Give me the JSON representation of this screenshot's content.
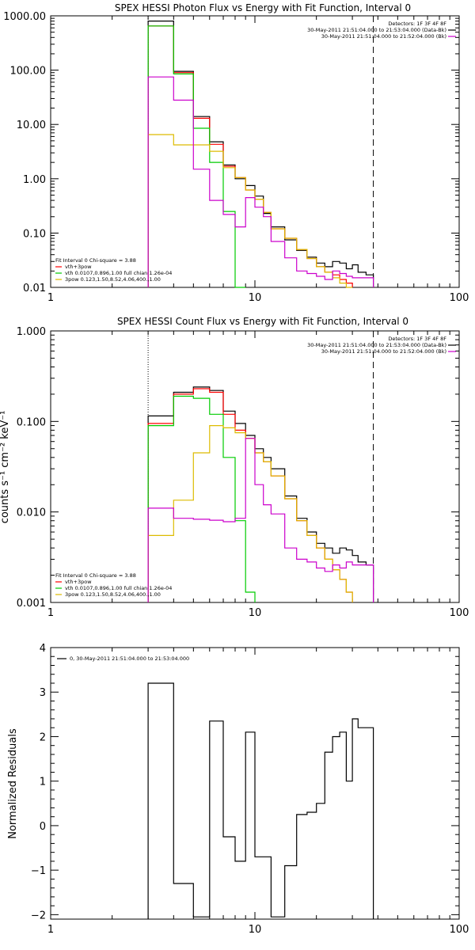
{
  "colors": {
    "axis": "#000000",
    "total": "#000000",
    "fit": "#ff0000",
    "thermal": "#00cc00",
    "power_law": "#ddbb00",
    "background": "#cc00cc"
  },
  "chart_data": [
    {
      "type": "line",
      "scale": {
        "x": "log",
        "y": "log"
      },
      "title": "SPEX HESSI Photon Flux vs Energy with Fit Function, Interval 0",
      "xlim": [
        1,
        100
      ],
      "ylim": [
        0.01,
        1000
      ],
      "xtick_labels": [
        "1",
        "10",
        "100"
      ],
      "ytick_values": [
        0.01,
        0.1,
        1,
        10,
        100,
        1000
      ],
      "ytick_labels": [
        "0.01",
        "0.10",
        "1.00",
        "10.00",
        "100.00",
        "1000.00"
      ],
      "fit_range": [
        3,
        38
      ],
      "legend_top_right": [
        "Detectors: 1F 3F 4F 8F",
        "30-May-2011 21:51:04.000 to 21:53:04.000 (Data-Bk)",
        "30-May-2011 21:51:04.000 to 21:52:04.000 (Bk)"
      ],
      "legend_bottom_left": [
        "Fit Interval 0   Chi-square = 3.88",
        "vth+3pow",
        "vth 0.0107,0.896,1.00  full chian 1.26e-04",
        "3pow 0.123,1.50,8.52,4.06,400.,1.00"
      ],
      "x_edges": [
        3.0,
        4.0,
        5.0,
        6.0,
        7.0,
        8.0,
        9.0,
        10.0,
        11.0,
        12.0,
        14.0,
        16.0,
        18.0,
        20.0,
        22.0,
        24.0,
        26.0,
        28.0,
        30.0,
        32.0,
        35.0,
        38.0
      ],
      "series": [
        {
          "name": "Data-Bk",
          "color": "#000000",
          "values": [
            800,
            95,
            14,
            4.8,
            1.8,
            1.0,
            0.75,
            0.48,
            0.23,
            0.13,
            0.075,
            0.048,
            0.036,
            0.028,
            0.024,
            0.03,
            0.028,
            0.022,
            0.026,
            0.019,
            0.017
          ]
        },
        {
          "name": "vth+3pow",
          "color": "#ff0000",
          "values": [
            650,
            90,
            13,
            4.3,
            1.7,
            1.05,
            0.62,
            0.42,
            0.24,
            0.12,
            0.08,
            0.05,
            0.034,
            0.024,
            0.019,
            0.017,
            0.014,
            0.012
          ]
        },
        {
          "name": "vth",
          "color": "#00cc00",
          "values": [
            650,
            85,
            8.5,
            2.0,
            0.25,
            0.01
          ]
        },
        {
          "name": "3pow",
          "color": "#ddbb00",
          "values": [
            6.5,
            4.2,
            4.2,
            3.2,
            1.6,
            1.05,
            0.62,
            0.42,
            0.24,
            0.12,
            0.08,
            0.05,
            0.034,
            0.024,
            0.019,
            0.015,
            0.012,
            0.01
          ]
        },
        {
          "name": "Bk",
          "color": "#cc00cc",
          "values": [
            75,
            28,
            1.5,
            0.4,
            0.22,
            0.13,
            0.45,
            0.3,
            0.2,
            0.07,
            0.035,
            0.02,
            0.018,
            0.016,
            0.014,
            0.02,
            0.018,
            0.016,
            0.015,
            0.015,
            0.015
          ]
        }
      ]
    },
    {
      "type": "line",
      "scale": {
        "x": "log",
        "y": "log"
      },
      "title": "SPEX HESSI Count Flux vs Energy with Fit Function, Interval 0",
      "ylabel": "counts s⁻¹ cm⁻² keV⁻¹",
      "xlim": [
        1,
        100
      ],
      "ylim": [
        0.001,
        1
      ],
      "xtick_labels": [
        "1",
        "10",
        "100"
      ],
      "ytick_values": [
        0.001,
        0.01,
        0.1,
        1
      ],
      "ytick_labels": [
        "0.001",
        "0.010",
        "0.100",
        "1.000"
      ],
      "fit_range": [
        3,
        38
      ],
      "legend_top_right": [
        "Detectors: 1F 3F 4F 8F",
        "30-May-2011 21:51:04.000 to 21:53:04.000 (Data-Bk)",
        "30-May-2011 21:51:04.000 to 21:52:04.000 (Bk)"
      ],
      "legend_bottom_left": [
        "Fit Interval 0   Chi-square = 3.88",
        "vth+3pow",
        "vth 0.0107,0.896,1.00  full chian 1.26e-04",
        "3pow 0.123,1.50,8.52,4.06,400.,1.00"
      ],
      "x_edges": [
        3.0,
        4.0,
        5.0,
        6.0,
        7.0,
        8.0,
        9.0,
        10.0,
        11.0,
        12.0,
        14.0,
        16.0,
        18.0,
        20.0,
        22.0,
        24.0,
        26.0,
        28.0,
        30.0,
        32.0,
        35.0,
        38.0
      ],
      "series": [
        {
          "name": "Data-Bk",
          "color": "#000000",
          "values": [
            0.115,
            0.21,
            0.24,
            0.22,
            0.13,
            0.095,
            0.07,
            0.05,
            0.04,
            0.03,
            0.015,
            0.0085,
            0.006,
            0.0045,
            0.004,
            0.0035,
            0.004,
            0.0038,
            0.0033,
            0.0028,
            0.0026
          ]
        },
        {
          "name": "vth+3pow",
          "color": "#ff0000",
          "values": [
            0.095,
            0.2,
            0.23,
            0.21,
            0.12,
            0.08,
            0.065,
            0.045,
            0.036,
            0.025,
            0.014,
            0.008,
            0.0055,
            0.004,
            0.003,
            0.0023,
            0.0018,
            0.0013
          ]
        },
        {
          "name": "vth",
          "color": "#00cc00",
          "values": [
            0.09,
            0.19,
            0.18,
            0.12,
            0.04,
            0.008,
            0.0013
          ]
        },
        {
          "name": "3pow",
          "color": "#ddbb00",
          "values": [
            0.0055,
            0.0135,
            0.045,
            0.09,
            0.085,
            0.075,
            0.065,
            0.045,
            0.036,
            0.025,
            0.014,
            0.008,
            0.0055,
            0.004,
            0.003,
            0.0023,
            0.0018,
            0.0013
          ]
        },
        {
          "name": "Bk",
          "color": "#cc00cc",
          "values": [
            0.011,
            0.0085,
            0.0083,
            0.0081,
            0.0078,
            0.0085,
            0.065,
            0.02,
            0.012,
            0.0095,
            0.004,
            0.003,
            0.0028,
            0.0024,
            0.0022,
            0.0026,
            0.0024,
            0.0028,
            0.0026,
            0.0026,
            0.0026
          ]
        }
      ]
    },
    {
      "type": "line",
      "scale": {
        "x": "log",
        "y": "linear"
      },
      "ylabel": "Normalized Residuals",
      "xlim": [
        1,
        100
      ],
      "ylim": [
        -2.1,
        4
      ],
      "xtick_labels": [
        "1",
        "10",
        "100"
      ],
      "ytick_values": [
        -2,
        -1,
        0,
        1,
        2,
        3,
        4
      ],
      "ytick_labels": [
        "−2",
        "−1",
        "0",
        "1",
        "2",
        "3",
        "4"
      ],
      "legend": "0, 30-May-2011 21:51:04.000 to 21:53:04.000",
      "x_edges": [
        3.0,
        4.0,
        5.0,
        6.0,
        7.0,
        8.0,
        9.0,
        10.0,
        11.0,
        12.0,
        14.0,
        16.0,
        18.0,
        20.0,
        22.0,
        24.0,
        26.0,
        28.0,
        30.0,
        32.0,
        35.0,
        38.0
      ],
      "series": [
        {
          "name": "Residuals",
          "color": "#000000",
          "values": [
            3.2,
            -1.3,
            -2.05,
            2.35,
            -0.25,
            -0.8,
            2.1,
            -0.7,
            -0.7,
            -2.05,
            -0.9,
            0.25,
            0.3,
            0.5,
            1.65,
            2.0,
            2.1,
            1.0,
            2.4,
            2.2,
            2.2
          ]
        }
      ]
    }
  ]
}
